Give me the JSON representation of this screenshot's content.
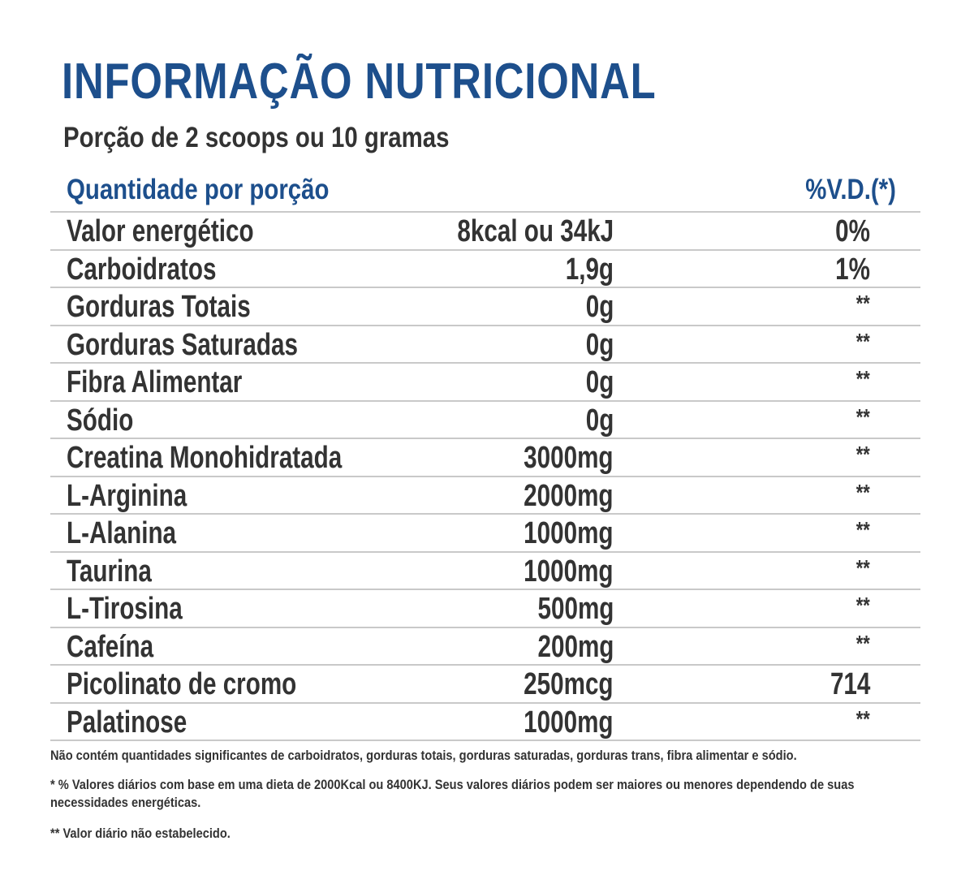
{
  "title": "INFORMAÇÃO NUTRICIONAL",
  "serving": "Porção de 2 scoops ou 10 gramas",
  "header": {
    "quantity_label": "Quantidade por porção",
    "dv_label": "%V.D.(*)"
  },
  "rows": [
    {
      "name": "Valor energético",
      "amount": "8kcal ou 34kJ",
      "dv": "0%"
    },
    {
      "name": "Carboidratos",
      "amount": "1,9g",
      "dv": "1%"
    },
    {
      "name": "Gorduras Totais",
      "amount": "0g",
      "dv": "**"
    },
    {
      "name": "Gorduras Saturadas",
      "amount": "0g",
      "dv": "**"
    },
    {
      "name": "Fibra Alimentar",
      "amount": "0g",
      "dv": "**"
    },
    {
      "name": "Sódio",
      "amount": "0g",
      "dv": "**"
    },
    {
      "name": "Creatina Monohidratada",
      "amount": "3000mg",
      "dv": "**"
    },
    {
      "name": "L-Arginina",
      "amount": "2000mg",
      "dv": "**"
    },
    {
      "name": "L-Alanina",
      "amount": "1000mg",
      "dv": "**"
    },
    {
      "name": "Taurina",
      "amount": "1000mg",
      "dv": "**"
    },
    {
      "name": "L-Tirosina",
      "amount": "500mg",
      "dv": "**"
    },
    {
      "name": "Cafeína",
      "amount": "200mg",
      "dv": "**"
    },
    {
      "name": "Picolinato de cromo",
      "amount": "250mcg",
      "dv": "714"
    },
    {
      "name": "Palatinose",
      "amount": "1000mg",
      "dv": "**"
    }
  ],
  "notes": {
    "not_significant": "Não contém quantidades significantes de carboidratos, gorduras totais, gorduras saturadas, gorduras trans, fibra alimentar e sódio.",
    "dv_basis": "* % Valores diários com base em uma dieta de 2000Kcal ou 8400KJ. Seus valores diários podem ser maiores ou menores dependendo de suas necessidades energéticas.",
    "not_established": "** Valor diário não estabelecido."
  },
  "colors": {
    "accent_blue": "#1d4f8c",
    "text_dark": "#333333",
    "divider": "#c9c9c9"
  }
}
